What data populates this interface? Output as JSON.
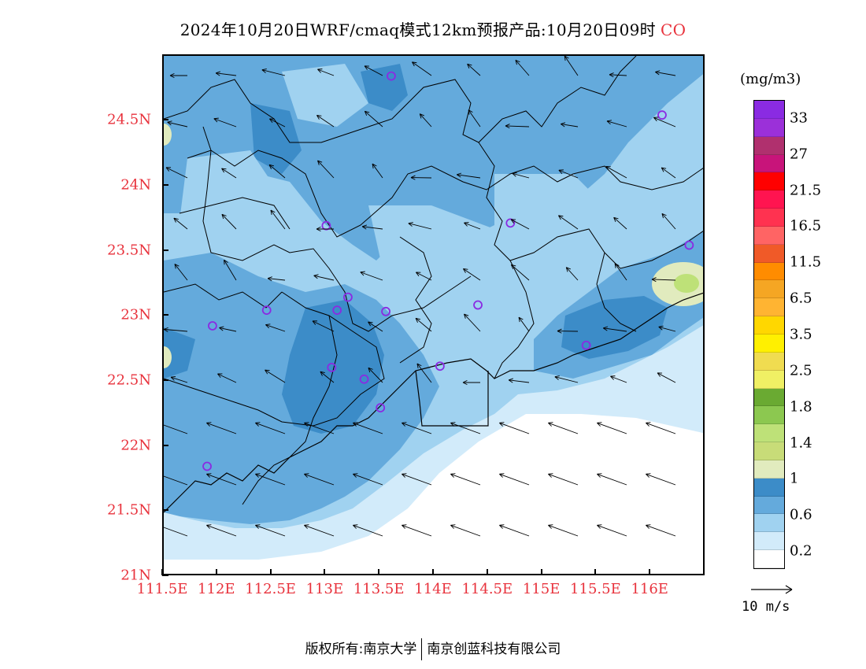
{
  "title": {
    "main": "2024年10月20日WRF/cmaq模式12km预报产品:10月20日09时",
    "species": "CO"
  },
  "axes": {
    "lat_labels": [
      "24.5N",
      "24N",
      "23.5N",
      "23N",
      "22.5N",
      "22N",
      "21.5N",
      "21N"
    ],
    "lon_labels": [
      "111.5E",
      "112E",
      "112.5E",
      "113E",
      "113.5E",
      "114E",
      "114.5E",
      "115E",
      "115.5E",
      "116E"
    ]
  },
  "legend": {
    "unit": "(mg/m3)",
    "labels": [
      "33",
      "27",
      "21.5",
      "16.5",
      "11.5",
      "6.5",
      "3.5",
      "2.5",
      "1.8",
      "1.4",
      "1",
      "0.6",
      "0.2"
    ],
    "colors": [
      "#8a2be2",
      "#9b30d9",
      "#b0306e",
      "#c8147a",
      "#ff0000",
      "#ff1450",
      "#ff3250",
      "#ff6464",
      "#f05a28",
      "#ff8c00",
      "#f5a623",
      "#ffb432",
      "#ffd700",
      "#fff000",
      "#f0dc50",
      "#f0f064",
      "#6aaa32",
      "#8cc850",
      "#bee178",
      "#c8dc78",
      "#e1ebbe",
      "#3c8cc8",
      "#64aadc",
      "#a0d2f0",
      "#d2ebfa",
      "#ffffff"
    ]
  },
  "wind_reference": {
    "label": "10 m/s"
  },
  "copyright": {
    "left": "版权所有:南京大学",
    "right": "南京创蓝科技有限公司"
  },
  "stations": [
    {
      "lon": 113.6,
      "lat": 24.85
    },
    {
      "lon": 116.1,
      "lat": 24.55
    },
    {
      "lon": 113.0,
      "lat": 23.7
    },
    {
      "lon": 114.7,
      "lat": 23.72
    },
    {
      "lon": 116.35,
      "lat": 23.55
    },
    {
      "lon": 113.2,
      "lat": 23.15
    },
    {
      "lon": 112.45,
      "lat": 23.05
    },
    {
      "lon": 113.1,
      "lat": 23.05
    },
    {
      "lon": 113.55,
      "lat": 23.04
    },
    {
      "lon": 114.4,
      "lat": 23.09
    },
    {
      "lon": 111.95,
      "lat": 22.93
    },
    {
      "lon": 115.4,
      "lat": 22.78
    },
    {
      "lon": 113.05,
      "lat": 22.61
    },
    {
      "lon": 114.05,
      "lat": 22.62
    },
    {
      "lon": 113.35,
      "lat": 22.52
    },
    {
      "lon": 113.5,
      "lat": 22.3
    },
    {
      "lon": 111.9,
      "lat": 21.85
    }
  ]
}
